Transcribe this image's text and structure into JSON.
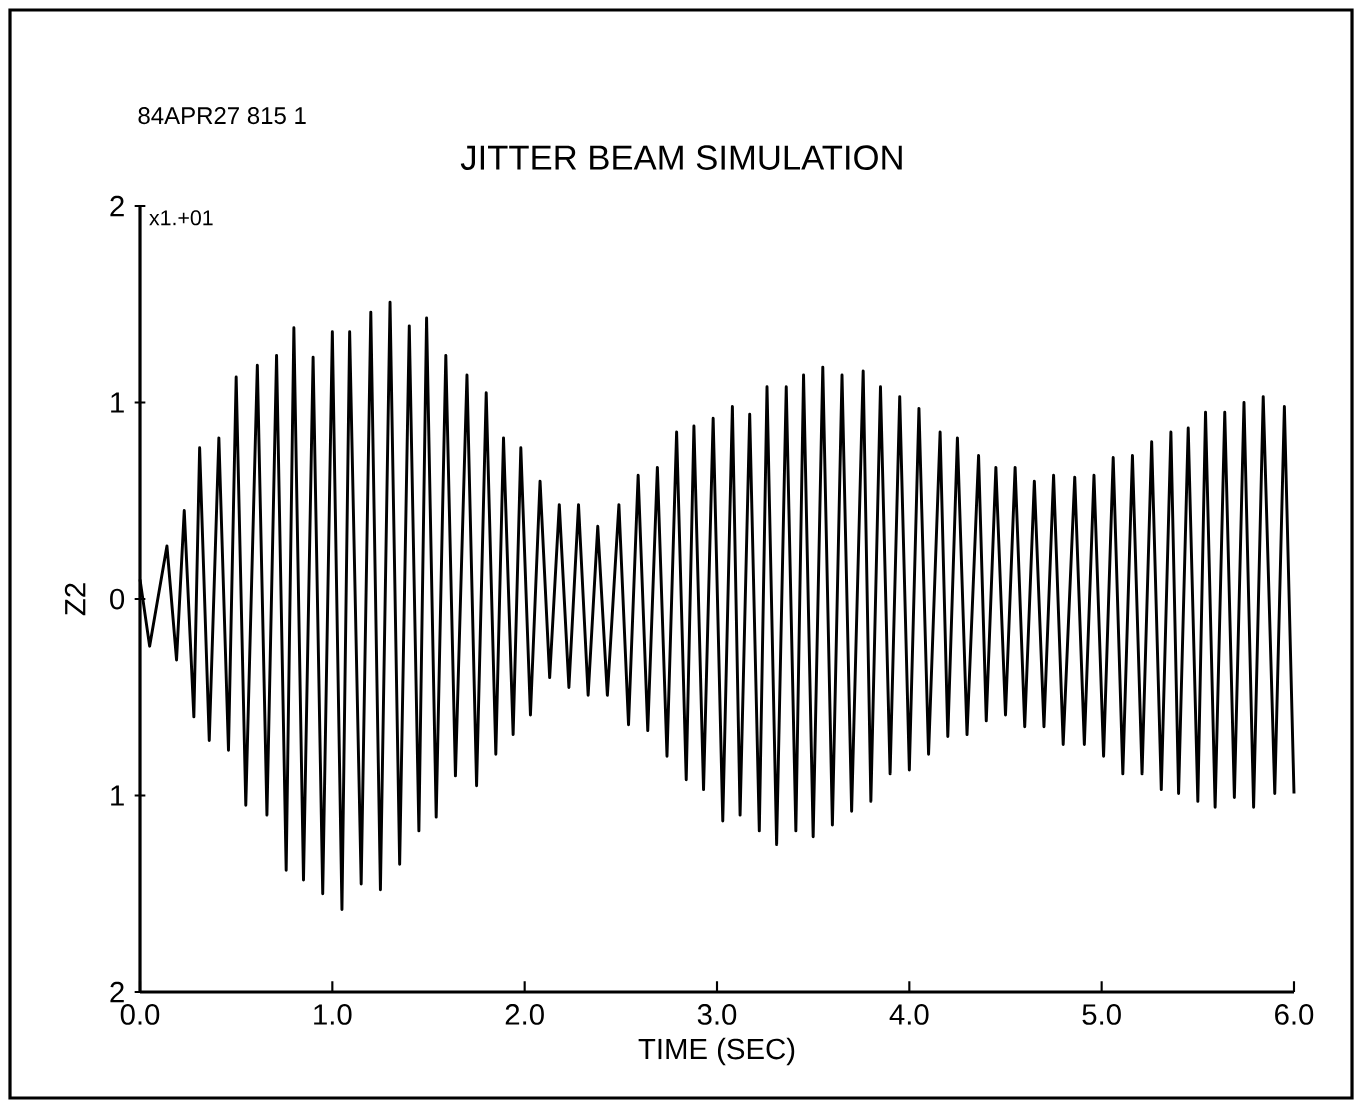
{
  "chart_data": {
    "type": "line",
    "title": "JITTER BEAM SIMULATION",
    "xlabel": "TIME (SEC)",
    "ylabel": "Z2",
    "annotations": [
      "84APR27 815 1",
      "x1.+01"
    ],
    "xlim": [
      0,
      6
    ],
    "ylim": [
      -2,
      2
    ],
    "xticks": [
      {
        "value": 0,
        "label": "0.0"
      },
      {
        "value": 1,
        "label": "1.0"
      },
      {
        "value": 2,
        "label": "2.0"
      },
      {
        "value": 3,
        "label": "3.0"
      },
      {
        "value": 4,
        "label": "4.0"
      },
      {
        "value": 5,
        "label": "5.0"
      },
      {
        "value": 6,
        "label": "6.0"
      }
    ],
    "yticks": [
      {
        "value": -2,
        "label": "2"
      },
      {
        "value": -1,
        "label": "1"
      },
      0,
      1,
      2
    ],
    "series": [
      {
        "color": "#000000",
        "x": [
          0,
          0.05,
          0.14,
          0.19,
          0.23,
          0.28,
          0.31,
          0.36,
          0.41,
          0.46,
          0.5,
          0.55,
          0.61,
          0.66,
          0.71,
          0.76,
          0.8,
          0.85,
          0.9,
          0.95,
          1.0,
          1.05,
          1.09,
          1.15,
          1.2,
          1.25,
          1.3,
          1.35,
          1.4,
          1.45,
          1.49,
          1.54,
          1.59,
          1.64,
          1.7,
          1.75,
          1.8,
          1.85,
          1.89,
          1.94,
          1.98,
          2.03,
          2.08,
          2.13,
          2.18,
          2.23,
          2.28,
          2.33,
          2.38,
          2.43,
          2.49,
          2.54,
          2.59,
          2.64,
          2.69,
          2.74,
          2.79,
          2.84,
          2.88,
          2.93,
          2.98,
          3.03,
          3.08,
          3.12,
          3.17,
          3.22,
          3.26,
          3.31,
          3.36,
          3.41,
          3.45,
          3.5,
          3.55,
          3.6,
          3.65,
          3.7,
          3.76,
          3.8,
          3.85,
          3.9,
          3.95,
          4.0,
          4.05,
          4.1,
          4.16,
          4.2,
          4.25,
          4.3,
          4.36,
          4.4,
          4.45,
          4.5,
          4.55,
          4.6,
          4.65,
          4.7,
          4.75,
          4.8,
          4.86,
          4.91,
          4.96,
          5.01,
          5.06,
          5.11,
          5.16,
          5.21,
          5.26,
          5.31,
          5.36,
          5.4,
          5.45,
          5.5,
          5.54,
          5.59,
          5.64,
          5.69,
          5.74,
          5.79,
          5.84,
          5.9,
          5.95,
          6.0
        ],
        "values": [
          0.1,
          -0.24,
          0.27,
          -0.31,
          0.45,
          -0.6,
          0.77,
          -0.72,
          0.82,
          -0.77,
          1.13,
          -1.05,
          1.19,
          -1.1,
          1.24,
          -1.38,
          1.38,
          -1.43,
          1.23,
          -1.5,
          1.36,
          -1.58,
          1.36,
          -1.45,
          1.46,
          -1.48,
          1.51,
          -1.35,
          1.39,
          -1.18,
          1.43,
          -1.11,
          1.24,
          -0.9,
          1.14,
          -0.95,
          1.05,
          -0.79,
          0.82,
          -0.69,
          0.77,
          -0.59,
          0.6,
          -0.4,
          0.48,
          -0.45,
          0.48,
          -0.49,
          0.37,
          -0.49,
          0.48,
          -0.64,
          0.63,
          -0.67,
          0.67,
          -0.8,
          0.85,
          -0.92,
          0.88,
          -0.97,
          0.92,
          -1.13,
          0.98,
          -1.1,
          0.94,
          -1.18,
          1.08,
          -1.25,
          1.08,
          -1.18,
          1.14,
          -1.21,
          1.18,
          -1.15,
          1.14,
          -1.08,
          1.16,
          -1.03,
          1.08,
          -0.89,
          1.03,
          -0.87,
          0.97,
          -0.79,
          0.85,
          -0.7,
          0.82,
          -0.69,
          0.73,
          -0.62,
          0.67,
          -0.59,
          0.67,
          -0.65,
          0.6,
          -0.65,
          0.63,
          -0.74,
          0.62,
          -0.74,
          0.63,
          -0.8,
          0.72,
          -0.89,
          0.73,
          -0.89,
          0.8,
          -0.97,
          0.85,
          -0.99,
          0.87,
          -1.03,
          0.95,
          -1.06,
          0.95,
          -1.01,
          1.0,
          -1.06,
          1.03,
          -0.99,
          0.98,
          -0.99
        ]
      }
    ]
  }
}
